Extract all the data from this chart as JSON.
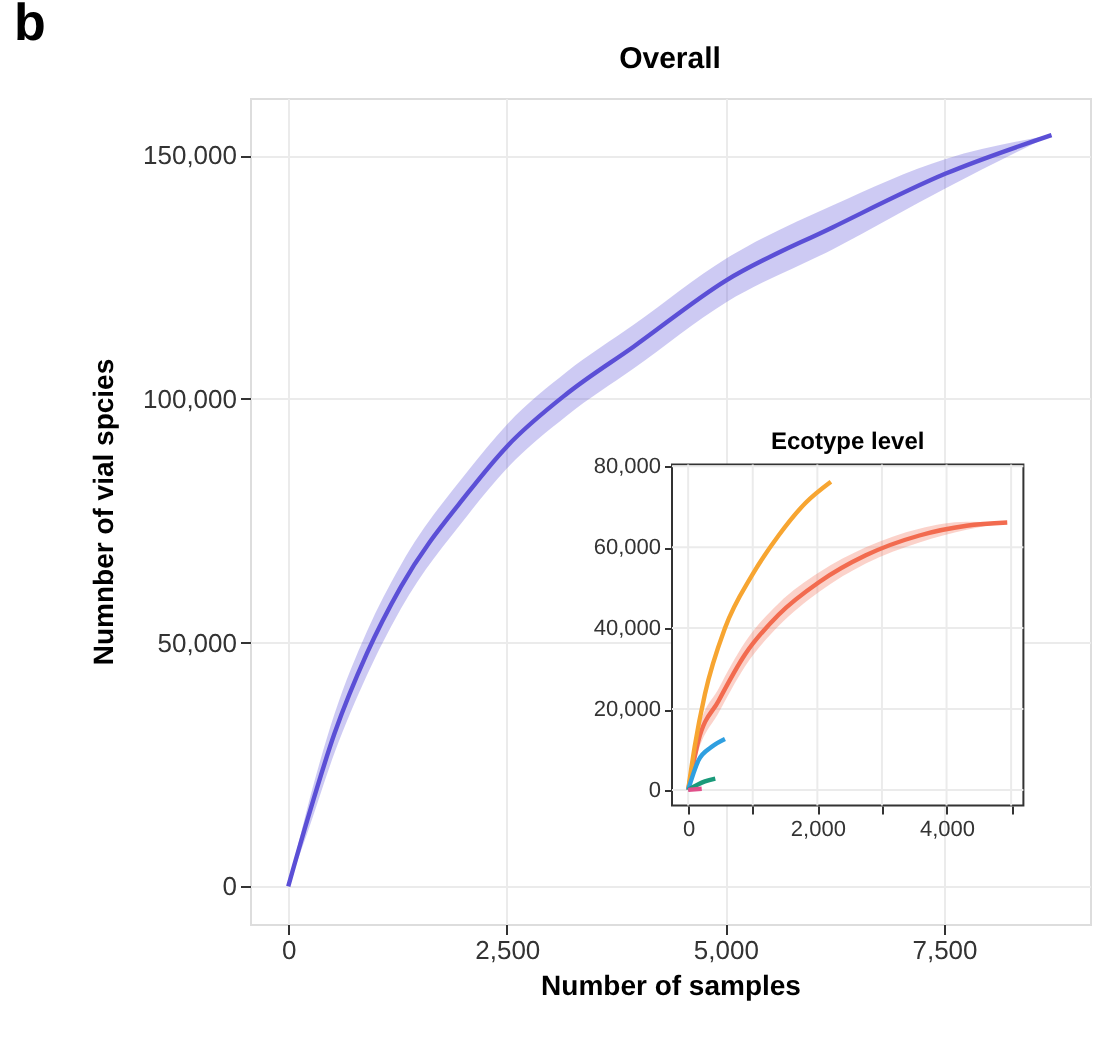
{
  "chart_data": [
    {
      "type": "line",
      "title": "Overall",
      "xlabel": "Number of samples",
      "ylabel": "Numnber of vial spcies",
      "annotations": [
        "b"
      ],
      "xlim": [
        -437,
        9170
      ],
      "ylim": [
        -7700,
        161700
      ],
      "xticks": [
        0,
        {
          "value": 2500,
          "label": "2,500"
        },
        {
          "value": 5000,
          "label": "5,000"
        },
        {
          "value": 7500,
          "label": "7,500"
        }
      ],
      "yticks": [
        0,
        {
          "value": 50000,
          "label": "50,000"
        },
        {
          "value": 100000,
          "label": "100,000"
        },
        {
          "value": 150000,
          "label": "150,000"
        }
      ],
      "grid": true,
      "series": [
        {
          "color": "#5b4fd6",
          "x": [
            0,
            220,
            530,
            900,
            1290,
            2050,
            2500,
            3190,
            3950,
            5010,
            6230,
            7520,
            8730
          ],
          "values": [
            0,
            13700,
            31400,
            47800,
            61500,
            80600,
            90200,
            101100,
            110700,
            124300,
            135200,
            146200,
            154100
          ],
          "lower": [
            0,
            11000,
            27400,
            43300,
            57000,
            76100,
            85700,
            96600,
            106200,
            119800,
            130700,
            143200,
            154100
          ],
          "upper": [
            0,
            16200,
            35400,
            52300,
            66000,
            85100,
            94700,
            105600,
            115200,
            128800,
            139700,
            149200,
            154100
          ]
        }
      ]
    },
    {
      "type": "line",
      "title": "Ecotype level",
      "xlim": [
        -250,
        5190
      ],
      "ylim": [
        -3830,
        80430
      ],
      "xticks": [
        0,
        {
          "value": 1000,
          "label": null
        },
        {
          "value": 2000,
          "label": "2,000"
        },
        {
          "value": 3000,
          "label": null
        },
        {
          "value": 4000,
          "label": "4,000"
        },
        {
          "value": 5000,
          "label": null
        }
      ],
      "yticks": [
        0,
        {
          "value": 20000,
          "label": "20,000"
        },
        {
          "value": 40000,
          "label": "40,000"
        },
        {
          "value": 60000,
          "label": "60,000"
        },
        {
          "value": 80000,
          "label": "80,000"
        }
      ],
      "grid": true,
      "series": [
        {
          "color": "#f26b4f",
          "x": [
            0,
            160,
            470,
            880,
            1400,
            2030,
            2750,
            3580,
            4310,
            4940
          ],
          "values": [
            0,
            12200,
            22000,
            33500,
            43300,
            51400,
            58000,
            62900,
            65300,
            66100
          ],
          "lower": [
            0,
            9700,
            19000,
            30500,
            40500,
            49000,
            56000,
            61200,
            64300,
            66100
          ],
          "upper": [
            0,
            14700,
            25000,
            36500,
            46100,
            53800,
            60000,
            64600,
            66300,
            66100
          ]
        },
        {
          "color": "#f7a531",
          "x": [
            0,
            100,
            260,
            570,
            990,
            1400,
            1820,
            2210
          ],
          "values": [
            0,
            10600,
            23700,
            40000,
            53100,
            62900,
            71000,
            76200
          ]
        },
        {
          "color": "#2f9fe0",
          "x": [
            0,
            160,
            360,
            570
          ],
          "values": [
            0,
            7300,
            10600,
            12600
          ]
        },
        {
          "color": "#1a9a7a",
          "x": [
            0,
            260,
            420
          ],
          "values": [
            0,
            2100,
            2800
          ]
        },
        {
          "color": "#e0508a",
          "x": [
            0,
            210
          ],
          "values": [
            0,
            300
          ]
        }
      ]
    }
  ]
}
